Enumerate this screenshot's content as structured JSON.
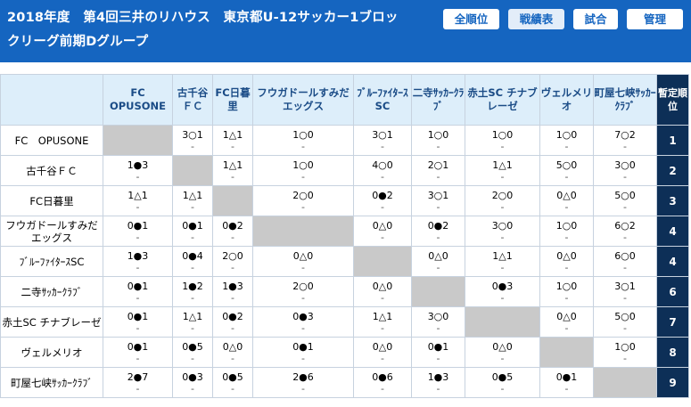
{
  "header": {
    "title": "2018年度　第4回三井のリハウス　東京都U-12サッカー1ブロックリーグ前期Dグループ",
    "nav": [
      "全順位",
      "戦績表",
      "試合",
      "管理"
    ],
    "active_nav": "戦績表"
  },
  "table": {
    "rank_header": "暫定順位",
    "col_headers": [
      "FC OPUSONE",
      "古千谷ＦＣ",
      "FC日暮里",
      "フウガドールすみだエッグス",
      "ﾌﾞﾙｰﾌｧｲﾀｰｽSC",
      "二寺ｻｯｶｰｸﾗﾌﾞ",
      "赤土SC チナブレーゼ",
      "ヴェルメリオ",
      "町屋七峡ｻｯｶｰｸﾗﾌﾞ"
    ],
    "dash": "-",
    "rows": [
      {
        "name": "FC　OPUSONE",
        "rank": "1",
        "cells": [
          "",
          "3○1",
          "1△1",
          "1○0",
          "3○1",
          "1○0",
          "1○0",
          "1○0",
          "7○2"
        ]
      },
      {
        "name": "古千谷ＦＣ",
        "rank": "2",
        "cells": [
          "1●3",
          "",
          "1△1",
          "1○0",
          "4○0",
          "2○1",
          "1△1",
          "5○0",
          "3○0"
        ]
      },
      {
        "name": "FC日暮里",
        "rank": "3",
        "cells": [
          "1△1",
          "1△1",
          "",
          "2○0",
          "0●2",
          "3○1",
          "2○0",
          "0△0",
          "5○0"
        ]
      },
      {
        "name": "フウガドールすみだエッグス",
        "rank": "4",
        "cells": [
          "0●1",
          "0●1",
          "0●2",
          "",
          "0△0",
          "0●2",
          "3○0",
          "1○0",
          "6○2"
        ]
      },
      {
        "name": "ﾌﾞﾙｰﾌｧｲﾀｰｽSC",
        "rank": "4",
        "cells": [
          "1●3",
          "0●4",
          "2○0",
          "0△0",
          "",
          "0△0",
          "1△1",
          "0△0",
          "6○0"
        ]
      },
      {
        "name": "二寺ｻｯｶｰｸﾗﾌﾞ",
        "rank": "6",
        "cells": [
          "0●1",
          "1●2",
          "1●3",
          "2○0",
          "0△0",
          "",
          "0●3",
          "1○0",
          "3○1"
        ]
      },
      {
        "name": "赤土SC チナブレーゼ",
        "rank": "7",
        "cells": [
          "0●1",
          "1△1",
          "0●2",
          "0●3",
          "1△1",
          "3○0",
          "",
          "0△0",
          "5○0"
        ]
      },
      {
        "name": "ヴェルメリオ",
        "rank": "8",
        "cells": [
          "0●1",
          "0●5",
          "0△0",
          "0●1",
          "0△0",
          "0●1",
          "0△0",
          "",
          "1○0"
        ]
      },
      {
        "name": "町屋七峡ｻｯｶｰｸﾗﾌﾞ",
        "rank": "9",
        "cells": [
          "2●7",
          "0●3",
          "0●5",
          "2●6",
          "0●6",
          "1●3",
          "0●5",
          "0●1",
          ""
        ]
      }
    ]
  }
}
